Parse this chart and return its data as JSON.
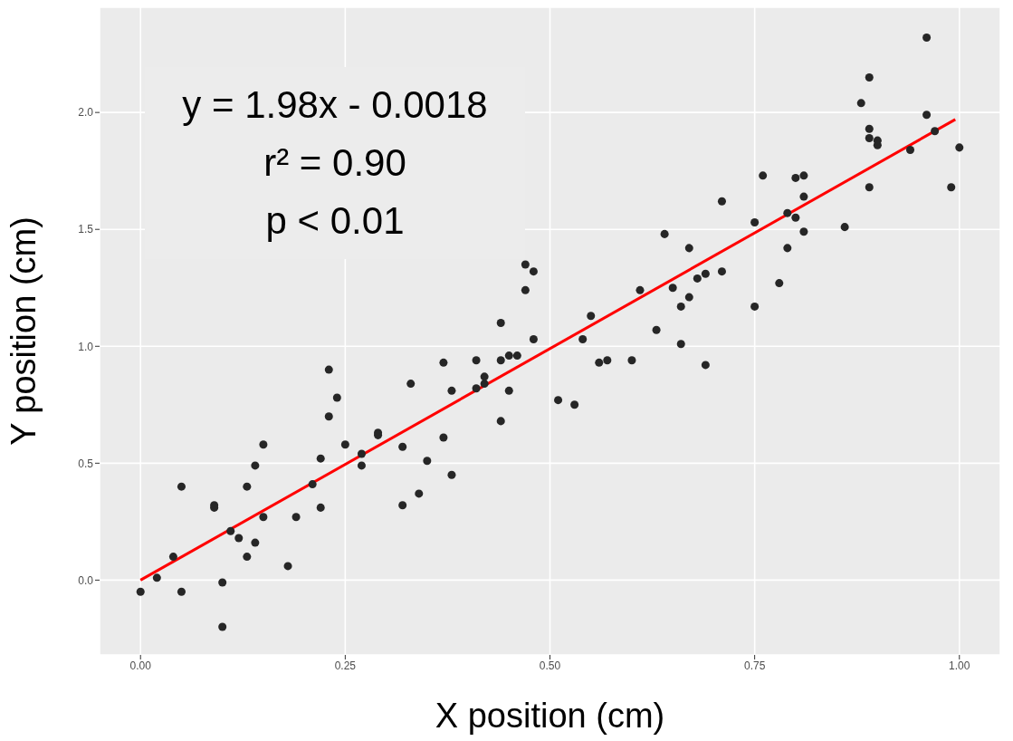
{
  "chart_data": {
    "type": "scatter",
    "xlabel": "X position (cm)",
    "ylabel": "Y position (cm)",
    "annotations": [
      "y = 1.98x - 0.0018",
      "r² = 0.90",
      "p < 0.01"
    ],
    "xlim": [
      -0.05,
      1.05
    ],
    "xticks": [
      {
        "value": 0,
        "label": "0.00"
      },
      {
        "value": 0.25,
        "label": "0.25"
      },
      {
        "value": 0.5,
        "label": "0.50"
      },
      {
        "value": 0.75,
        "label": "0.75"
      },
      {
        "value": 1,
        "label": "1.00"
      }
    ],
    "ylim": [
      -0.32,
      2.45
    ],
    "yticks": [
      {
        "value": 0,
        "label": "0.0"
      },
      {
        "value": 0.5,
        "label": "0.5"
      },
      {
        "value": 1,
        "label": "1.0"
      },
      {
        "value": 1.5,
        "label": "1.5"
      },
      {
        "value": 2,
        "label": "2.0"
      }
    ],
    "grid": true,
    "series": [
      {
        "marker": "circle",
        "color": "#262626",
        "x": [
          0.0,
          0.02,
          0.04,
          0.05,
          0.05,
          0.09,
          0.09,
          0.1,
          0.1,
          0.11,
          0.12,
          0.13,
          0.13,
          0.14,
          0.14,
          0.15,
          0.15,
          0.18,
          0.19,
          0.21,
          0.22,
          0.22,
          0.23,
          0.23,
          0.24,
          0.25,
          0.27,
          0.27,
          0.29,
          0.29,
          0.32,
          0.32,
          0.33,
          0.34,
          0.35,
          0.37,
          0.37,
          0.38,
          0.38,
          0.41,
          0.41,
          0.42,
          0.42,
          0.44,
          0.44,
          0.44,
          0.45,
          0.46,
          0.45,
          0.47,
          0.47,
          0.48,
          0.48,
          0.51,
          0.53,
          0.54,
          0.55,
          0.56,
          0.57,
          0.6,
          0.61,
          0.63,
          0.64,
          0.65,
          0.66,
          0.66,
          0.67,
          0.67,
          0.68,
          0.69,
          0.69,
          0.71,
          0.71,
          0.75,
          0.75,
          0.76,
          0.78,
          0.79,
          0.79,
          0.8,
          0.8,
          0.81,
          0.81,
          0.81,
          0.86,
          0.88,
          0.89,
          0.89,
          0.89,
          0.89,
          0.9,
          0.9,
          0.94,
          0.96,
          0.96,
          0.97,
          0.99,
          1.0
        ],
        "values": [
          -0.05,
          0.01,
          0.1,
          0.4,
          -0.05,
          0.32,
          0.31,
          -0.01,
          -0.2,
          0.21,
          0.18,
          0.1,
          0.4,
          0.16,
          0.49,
          0.27,
          0.58,
          0.06,
          0.27,
          0.41,
          0.52,
          0.31,
          0.7,
          0.9,
          0.78,
          0.58,
          0.49,
          0.54,
          0.63,
          0.62,
          0.57,
          0.32,
          0.84,
          0.37,
          0.51,
          0.61,
          0.93,
          0.81,
          0.45,
          0.82,
          0.94,
          0.87,
          0.84,
          1.1,
          0.68,
          0.94,
          0.96,
          0.96,
          0.81,
          1.24,
          1.35,
          1.32,
          1.03,
          0.77,
          0.75,
          1.03,
          1.13,
          0.93,
          0.94,
          0.94,
          1.24,
          1.07,
          1.48,
          1.25,
          1.17,
          1.01,
          1.21,
          1.42,
          1.29,
          1.31,
          0.92,
          1.32,
          1.62,
          1.53,
          1.17,
          1.73,
          1.27,
          1.57,
          1.42,
          1.72,
          1.55,
          1.64,
          1.49,
          1.73,
          1.51,
          2.04,
          2.15,
          1.68,
          1.93,
          1.89,
          1.88,
          1.86,
          1.84,
          2.32,
          1.99,
          1.92,
          1.68,
          1.85
        ]
      },
      {
        "type": "line",
        "marker": "none",
        "line_style": "solid",
        "color": "#ff0000",
        "x": [
          0,
          0.995
        ],
        "values": [
          0.0,
          1.97
        ]
      }
    ]
  }
}
